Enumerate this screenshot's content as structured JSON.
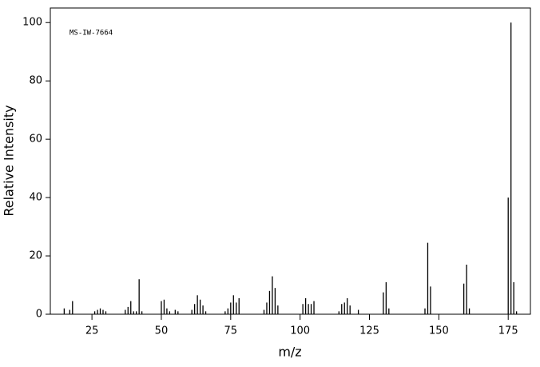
{
  "chart_data": {
    "type": "bar",
    "annotation": "MS-IW-7664",
    "xlabel": "m/z",
    "ylabel": "Relative Intensity",
    "x": [
      15,
      17,
      18,
      26,
      27,
      28,
      29,
      30,
      37,
      38,
      39,
      40,
      41,
      42,
      43,
      50,
      51,
      52,
      53,
      55,
      56,
      61,
      62,
      63,
      64,
      65,
      66,
      73,
      74,
      75,
      76,
      77,
      78,
      87,
      88,
      89,
      90,
      91,
      92,
      101,
      102,
      103,
      104,
      105,
      114,
      115,
      116,
      117,
      118,
      121,
      130,
      131,
      132,
      145,
      146,
      147,
      159,
      160,
      161,
      175,
      176,
      177,
      178
    ],
    "values": [
      2,
      1.5,
      4.5,
      1,
      1.5,
      2,
      1.5,
      1,
      1.5,
      2.5,
      4.5,
      1,
      1,
      12,
      1,
      4.5,
      5,
      2,
      1,
      1.5,
      1,
      1.5,
      3.5,
      6.5,
      5,
      3,
      1,
      1,
      2,
      4,
      6.5,
      4,
      5.5,
      1.5,
      4,
      8,
      13,
      9,
      3,
      3.5,
      5.5,
      3.5,
      3.5,
      4.5,
      1,
      3.5,
      4,
      5.5,
      3,
      1.5,
      7.5,
      11,
      2,
      2,
      24.5,
      9.5,
      10.5,
      17,
      2,
      40,
      100,
      11,
      1
    ],
    "color": "#000000",
    "xlim": [
      10,
      183
    ],
    "ylim": [
      0,
      105
    ],
    "xticks": [
      25,
      50,
      75,
      100,
      125,
      150,
      175
    ],
    "yticks": [
      0,
      20,
      40,
      60,
      80,
      100
    ]
  }
}
